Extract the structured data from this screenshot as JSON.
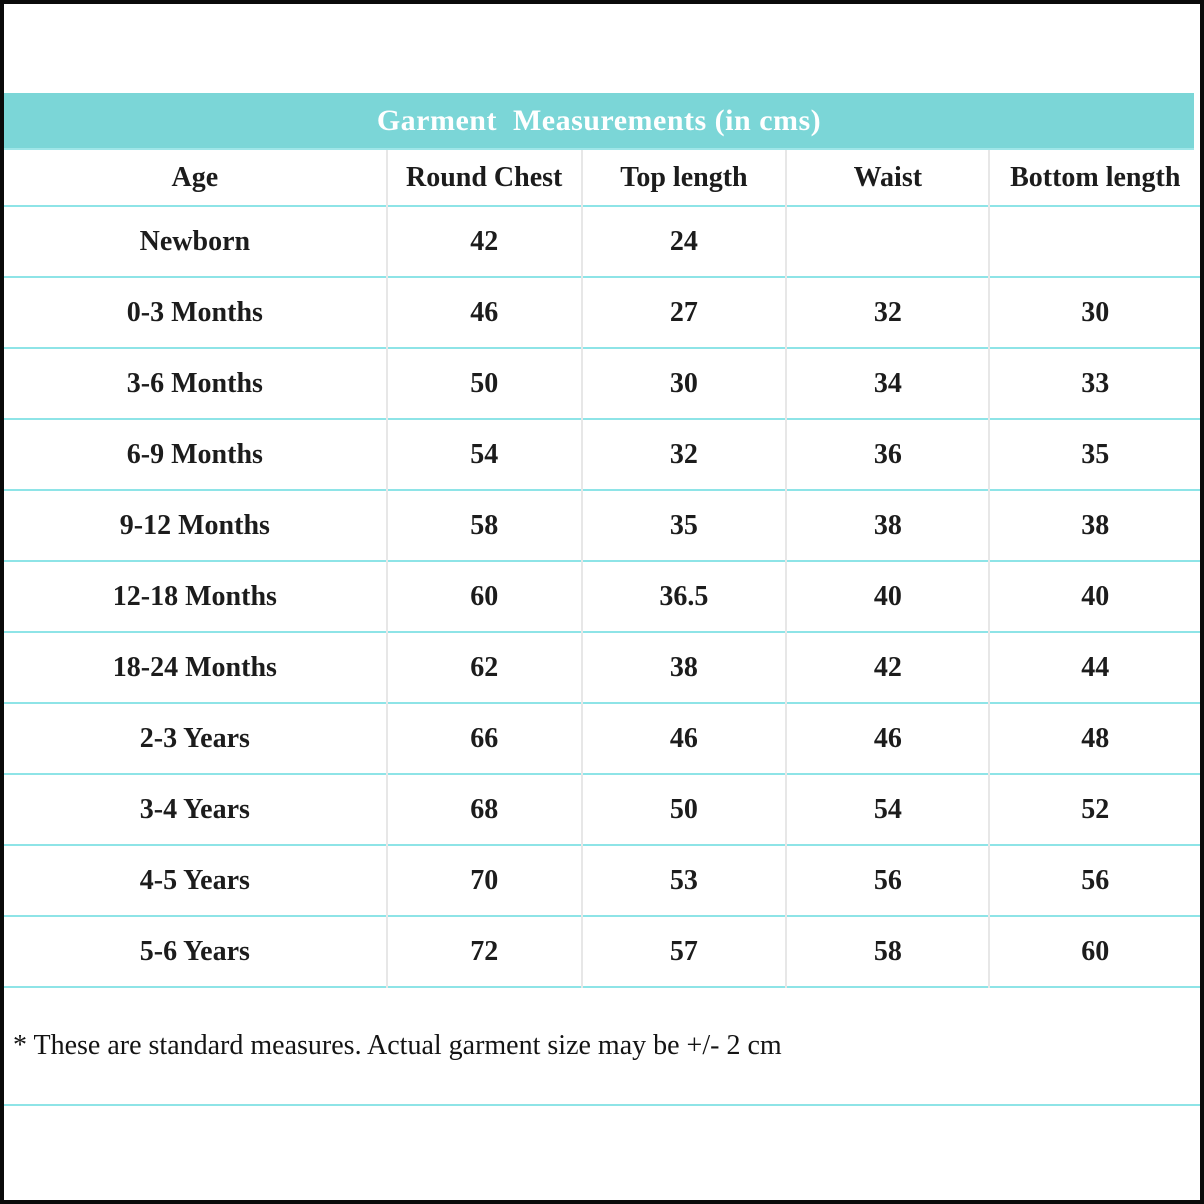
{
  "header": {
    "title": "Garment  Measurements (in cms)"
  },
  "colors": {
    "title_band_background": "#7bd6d7",
    "title_text": "#ffffff",
    "row_separator_line": "#8ee4e7",
    "column_divider_line": "#e7e7e7",
    "body_text": "#1c1c1c",
    "outer_border": "#0a0a0a",
    "page_background": "#ffffff"
  },
  "table": {
    "columns": [
      "Age",
      "Round Chest",
      "Top length",
      "Waist",
      "Bottom length"
    ],
    "rows": [
      {
        "age": "Newborn",
        "round_chest": "42",
        "top_length": "24",
        "waist": "",
        "bottom_length": ""
      },
      {
        "age": "0-3 Months",
        "round_chest": "46",
        "top_length": "27",
        "waist": "32",
        "bottom_length": "30"
      },
      {
        "age": "3-6 Months",
        "round_chest": "50",
        "top_length": "30",
        "waist": "34",
        "bottom_length": "33"
      },
      {
        "age": "6-9 Months",
        "round_chest": "54",
        "top_length": "32",
        "waist": "36",
        "bottom_length": "35"
      },
      {
        "age": "9-12 Months",
        "round_chest": "58",
        "top_length": "35",
        "waist": "38",
        "bottom_length": "38"
      },
      {
        "age": "12-18 Months",
        "round_chest": "60",
        "top_length": "36.5",
        "waist": "40",
        "bottom_length": "40"
      },
      {
        "age": "18-24 Months",
        "round_chest": "62",
        "top_length": "38",
        "waist": "42",
        "bottom_length": "44"
      },
      {
        "age": "2-3 Years",
        "round_chest": "66",
        "top_length": "46",
        "waist": "46",
        "bottom_length": "48"
      },
      {
        "age": "3-4 Years",
        "round_chest": "68",
        "top_length": "50",
        "waist": "54",
        "bottom_length": "52"
      },
      {
        "age": "4-5 Years",
        "round_chest": "70",
        "top_length": "53",
        "waist": "56",
        "bottom_length": "56"
      },
      {
        "age": "5-6 Years",
        "round_chest": "72",
        "top_length": "57",
        "waist": "58",
        "bottom_length": "60"
      }
    ]
  },
  "footnote": "* These are standard measures. Actual garment size may be +/- 2 cm"
}
